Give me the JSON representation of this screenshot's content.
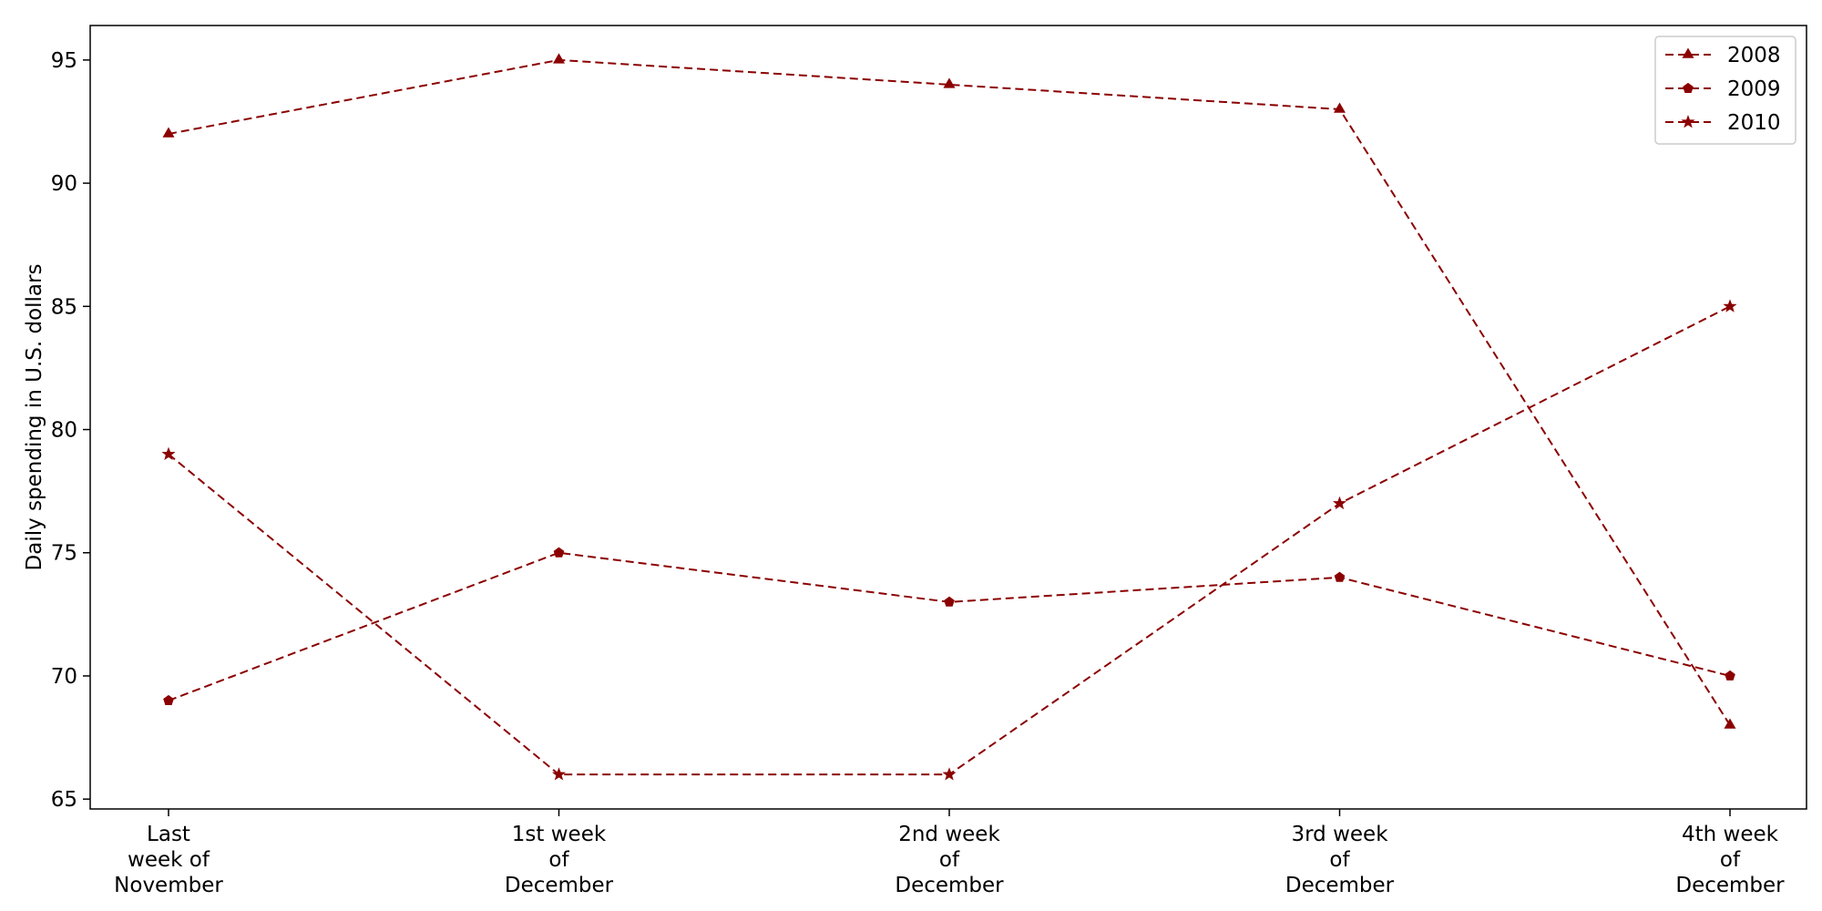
{
  "chart_data": {
    "type": "line",
    "title": "",
    "xlabel": "",
    "ylabel": "Daily spending in U.S. dollars",
    "categories": [
      [
        "Last",
        "week of",
        "November"
      ],
      [
        "1st week",
        "of",
        "December"
      ],
      [
        "2nd week",
        "of",
        "December"
      ],
      [
        "3rd week",
        "of",
        "December"
      ],
      [
        "4th week",
        "of",
        "December"
      ]
    ],
    "ylim": [
      64.6,
      96.4
    ],
    "yticks": [
      65,
      70,
      75,
      80,
      85,
      90,
      95
    ],
    "grid": false,
    "legend_position": "top-right",
    "line_style": "dashed",
    "color": "#8b0000",
    "series": [
      {
        "name": "2008",
        "marker": "triangle",
        "values": [
          92,
          95,
          94,
          93,
          68
        ]
      },
      {
        "name": "2009",
        "marker": "pentagon",
        "values": [
          69,
          75,
          73,
          74,
          70
        ]
      },
      {
        "name": "2010",
        "marker": "star",
        "values": [
          79,
          66,
          66,
          77,
          85
        ]
      }
    ]
  }
}
